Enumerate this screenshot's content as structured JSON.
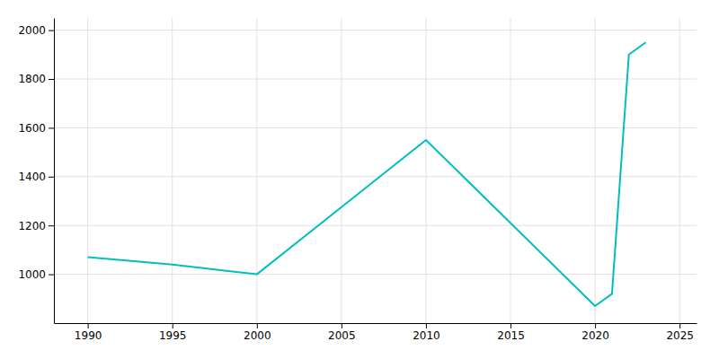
{
  "chart_data": {
    "type": "line",
    "x": [
      1990,
      1995,
      2000,
      2010,
      2015,
      2020,
      2021,
      2022,
      2023
    ],
    "values": [
      1070,
      1040,
      1000,
      1550,
      1210,
      870,
      920,
      1900,
      1950
    ],
    "color": "#00BFBF",
    "xlim": [
      1988,
      2026
    ],
    "ylim": [
      800,
      2050
    ],
    "xticks": [
      1990,
      1995,
      2000,
      2005,
      2010,
      2015,
      2020,
      2025
    ],
    "yticks": [
      1000,
      1200,
      1400,
      1600,
      1800,
      2000
    ],
    "grid": true
  }
}
